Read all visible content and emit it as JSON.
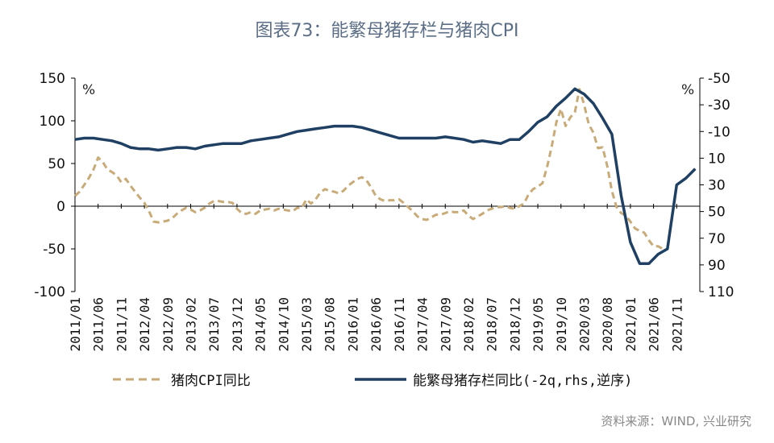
{
  "title": "图表73：能繁母猪存栏与猪肉CPI",
  "left_unit": "%",
  "right_unit": "%",
  "source": "资料来源：WIND, 兴业研究",
  "colors": {
    "cpi": "#c8ab78",
    "sow": "#1f3f63",
    "title": "#5b6e86"
  },
  "chart_data": {
    "type": "line",
    "x_tick_labels": [
      "2011/01",
      "2011/06",
      "2011/11",
      "2012/04",
      "2012/09",
      "2013/02",
      "2013/07",
      "2013/12",
      "2014/05",
      "2014/10",
      "2015/03",
      "2015/08",
      "2016/01",
      "2016/06",
      "2016/11",
      "2017/04",
      "2017/09",
      "2018/02",
      "2018/07",
      "2018/12",
      "2019/05",
      "2019/10",
      "2020/03",
      "2020/08",
      "2021/01",
      "2021/06",
      "2021/11"
    ],
    "x_range": [
      "2011/01",
      "2022/04"
    ],
    "y_left": {
      "min": -100,
      "max": 150,
      "ticks": [
        -100,
        -50,
        0,
        50,
        100,
        150
      ]
    },
    "y_right": {
      "min": -50,
      "max": 110,
      "inverted": true,
      "ticks": [
        -50,
        -30,
        -10,
        10,
        30,
        50,
        70,
        90,
        110
      ]
    },
    "series": [
      {
        "name": "猪肉CPI同比",
        "axis": "left",
        "style": "dashed",
        "x": [
          "2011/01",
          "2011/02",
          "2011/03",
          "2011/04",
          "2011/05",
          "2011/06",
          "2011/07",
          "2011/08",
          "2011/09",
          "2011/10",
          "2011/11",
          "2011/12",
          "2012/01",
          "2012/02",
          "2012/03",
          "2012/04",
          "2012/05",
          "2012/06",
          "2012/07",
          "2012/08",
          "2012/09",
          "2012/10",
          "2012/11",
          "2012/12",
          "2013/01",
          "2013/02",
          "2013/03",
          "2013/04",
          "2013/05",
          "2013/06",
          "2013/07",
          "2013/08",
          "2013/09",
          "2013/10",
          "2013/11",
          "2013/12",
          "2014/01",
          "2014/02",
          "2014/03",
          "2014/04",
          "2014/05",
          "2014/06",
          "2014/07",
          "2014/08",
          "2014/09",
          "2014/10",
          "2014/11",
          "2014/12",
          "2015/01",
          "2015/02",
          "2015/03",
          "2015/04",
          "2015/05",
          "2015/06",
          "2015/07",
          "2015/08",
          "2015/09",
          "2015/10",
          "2015/11",
          "2015/12",
          "2016/01",
          "2016/02",
          "2016/03",
          "2016/04",
          "2016/05",
          "2016/06",
          "2016/07",
          "2016/08",
          "2016/09",
          "2016/10",
          "2016/11",
          "2016/12",
          "2017/01",
          "2017/02",
          "2017/03",
          "2017/04",
          "2017/05",
          "2017/06",
          "2017/07",
          "2017/08",
          "2017/09",
          "2017/10",
          "2017/11",
          "2017/12",
          "2018/01",
          "2018/02",
          "2018/03",
          "2018/04",
          "2018/05",
          "2018/06",
          "2018/07",
          "2018/08",
          "2018/09",
          "2018/10",
          "2018/11",
          "2018/12",
          "2019/01",
          "2019/02",
          "2019/03",
          "2019/04",
          "2019/05",
          "2019/06",
          "2019/07",
          "2019/08",
          "2019/09",
          "2019/10",
          "2019/11",
          "2019/12",
          "2020/01",
          "2020/02",
          "2020/03",
          "2020/04",
          "2020/05",
          "2020/06",
          "2020/07",
          "2020/08",
          "2020/09",
          "2020/10",
          "2020/11",
          "2020/12",
          "2021/01",
          "2021/02",
          "2021/03",
          "2021/04",
          "2021/05",
          "2021/06",
          "2021/07",
          "2021/08"
        ],
        "values": [
          12,
          17,
          25,
          33,
          43,
          57,
          52,
          43,
          40,
          36,
          28,
          32,
          24,
          17,
          10,
          4,
          -6,
          -18,
          -19,
          -18,
          -17,
          -14,
          -9,
          -5,
          -2,
          -4,
          -7,
          -5,
          -2,
          3,
          6,
          6,
          5,
          5,
          4,
          -3,
          -8,
          -9,
          -7,
          -9,
          -5,
          -4,
          -3,
          -5,
          -3,
          -4,
          -5,
          -6,
          -2,
          -2,
          8,
          3,
          8,
          16,
          20,
          18,
          17,
          15,
          18,
          24,
          28,
          32,
          34,
          30,
          22,
          12,
          8,
          6,
          7,
          7,
          8,
          4,
          -1,
          -6,
          -12,
          -15,
          -16,
          -13,
          -10,
          -10,
          -8,
          -6,
          -7,
          -7,
          -5,
          -11,
          -15,
          -12,
          -9,
          -5,
          -3,
          -1,
          -1,
          0,
          -2,
          -3,
          0,
          3,
          14,
          20,
          23,
          27,
          46,
          70,
          98,
          114,
          94,
          104,
          110,
          137,
          119,
          96,
          86,
          68,
          69,
          47,
          18,
          -1,
          -8,
          -11,
          -18,
          -26,
          -29,
          -31,
          -40,
          -47,
          -47,
          -50
        ]
      },
      {
        "name": "能繁母猪存栏同比(-2q,rhs,逆序)",
        "axis": "right",
        "style": "solid",
        "x": [
          "2011/01",
          "2011/03",
          "2011/05",
          "2011/07",
          "2011/09",
          "2011/11",
          "2012/01",
          "2012/03",
          "2012/05",
          "2012/07",
          "2012/09",
          "2012/11",
          "2013/01",
          "2013/03",
          "2013/05",
          "2013/07",
          "2013/09",
          "2013/11",
          "2014/01",
          "2014/03",
          "2014/05",
          "2014/07",
          "2014/09",
          "2014/11",
          "2015/01",
          "2015/03",
          "2015/05",
          "2015/07",
          "2015/09",
          "2015/11",
          "2016/01",
          "2016/03",
          "2016/05",
          "2016/07",
          "2016/09",
          "2016/11",
          "2017/01",
          "2017/03",
          "2017/05",
          "2017/07",
          "2017/09",
          "2017/11",
          "2018/01",
          "2018/03",
          "2018/05",
          "2018/07",
          "2018/09",
          "2018/11",
          "2019/01",
          "2019/03",
          "2019/05",
          "2019/07",
          "2019/09",
          "2019/11",
          "2020/01",
          "2020/03",
          "2020/05",
          "2020/07",
          "2020/09",
          "2020/11",
          "2021/01",
          "2021/03",
          "2021/05",
          "2021/07",
          "2021/09",
          "2021/11",
          "2022/01",
          "2022/03"
        ],
        "values": [
          -4,
          -5,
          -5,
          -4,
          -3,
          -1,
          2,
          3,
          3,
          4,
          3,
          2,
          2,
          3,
          1,
          0,
          -1,
          -1,
          -1,
          -3,
          -4,
          -5,
          -6,
          -8,
          -10,
          -11,
          -12,
          -13,
          -14,
          -14,
          -14,
          -13,
          -11,
          -9,
          -7,
          -5,
          -5,
          -5,
          -5,
          -5,
          -6,
          -5,
          -4,
          -2,
          -3,
          -2,
          -1,
          -4,
          -4,
          -10,
          -17,
          -21,
          -29,
          -35,
          -42,
          -38,
          -31,
          -20,
          -8,
          38,
          73,
          89,
          89,
          82,
          78,
          30,
          25,
          18
        ]
      }
    ]
  }
}
